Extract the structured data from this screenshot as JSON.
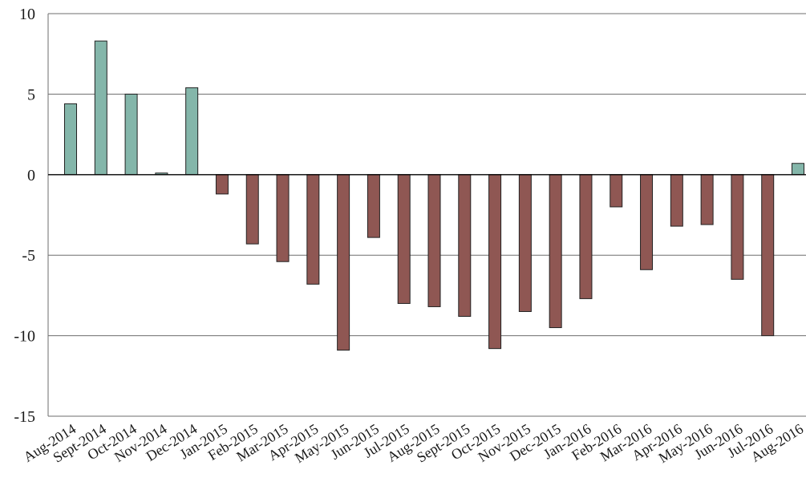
{
  "chart_data": {
    "type": "bar",
    "title": "",
    "xlabel": "",
    "ylabel": "",
    "ylim": [
      -15,
      10
    ],
    "yticks": [
      10,
      5,
      0,
      -5,
      -10,
      -15
    ],
    "grid": true,
    "colors": {
      "positive": "#84b6aa",
      "negative": "#8f5753"
    },
    "categories": [
      "Aug-2014",
      "Sept-2014",
      "Oct-2014",
      "Nov-2014",
      "Dec-2014",
      "Jan-2015",
      "Feb-2015",
      "Mar-2015",
      "Apr-2015",
      "May-2015",
      "Jun-2015",
      "Jul-2015",
      "Aug-2015",
      "Sept-2015",
      "Oct-2015",
      "Nov-2015",
      "Dec-2015",
      "Jan-2016",
      "Feb-2016",
      "Mar-2016",
      "Apr-2016",
      "May-2016",
      "Jun-2016",
      "Jul-2016",
      "Aug-2016"
    ],
    "values": [
      4.4,
      8.3,
      5.0,
      0.1,
      5.4,
      -1.2,
      -4.3,
      -5.4,
      -6.8,
      -10.9,
      -3.9,
      -8.0,
      -8.2,
      -8.8,
      -10.8,
      -8.5,
      -9.5,
      -7.7,
      -2.0,
      -5.9,
      -3.2,
      -3.1,
      -6.5,
      -10.0,
      0.7
    ]
  }
}
